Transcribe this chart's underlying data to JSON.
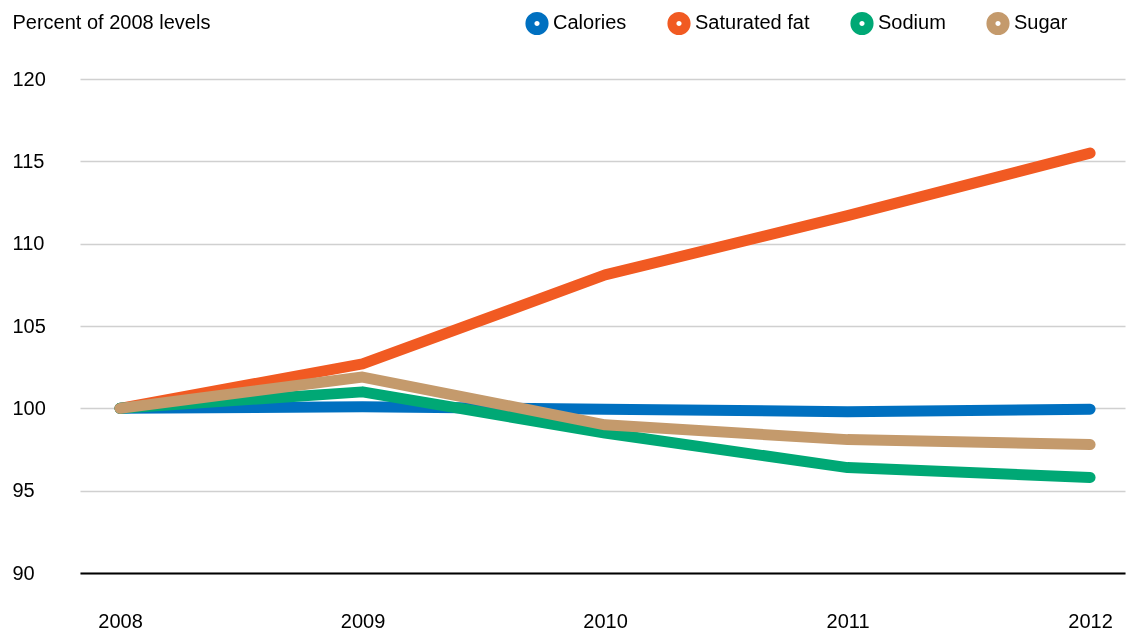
{
  "chart_data": {
    "type": "line",
    "ylabel": "Percent of 2008 levels",
    "categories": [
      "2008",
      "2009",
      "2010",
      "2011",
      "2012"
    ],
    "series": [
      {
        "name": "Calories",
        "color": "#0070c0",
        "values": [
          100,
          100.1,
          99.95,
          99.8,
          99.95
        ]
      },
      {
        "name": "Saturated fat",
        "color": "#f15a22",
        "values": [
          100,
          102.7,
          108.1,
          111.7,
          115.5
        ]
      },
      {
        "name": "Sodium",
        "color": "#00a875",
        "values": [
          100,
          101.0,
          98.5,
          96.4,
          95.8
        ]
      },
      {
        "name": "Sugar",
        "color": "#c49a6c",
        "values": [
          100,
          101.9,
          99.0,
          98.1,
          97.8
        ]
      }
    ],
    "ylim": [
      90,
      120
    ],
    "yticks": [
      90,
      95,
      100,
      105,
      110,
      115,
      120
    ],
    "grid": "y",
    "legend": "top right",
    "line_style": "solid"
  }
}
